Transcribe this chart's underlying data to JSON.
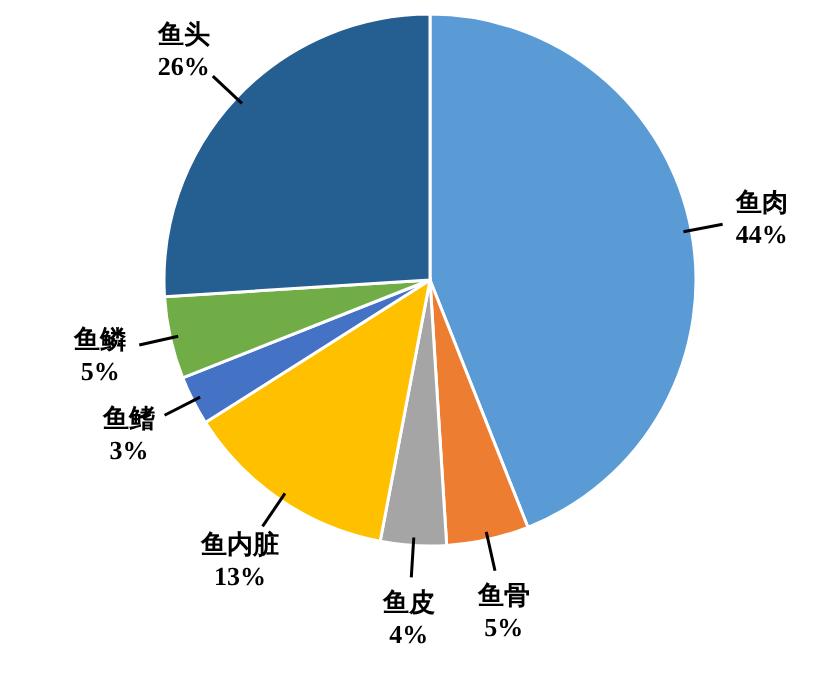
{
  "chart_data": {
    "type": "pie",
    "categories": [
      "鱼肉",
      "鱼骨",
      "鱼皮",
      "鱼内脏",
      "鱼鳍",
      "鱼鳞",
      "鱼头"
    ],
    "values": [
      44,
      5,
      4,
      13,
      3,
      5,
      26
    ],
    "value_labels": [
      "44%",
      "5%",
      "4%",
      "13%",
      "3%",
      "5%",
      "26%"
    ],
    "colors": [
      "#5b9bd5",
      "#ed7d31",
      "#a5a5a5",
      "#ffc000",
      "#4472c4",
      "#70ad47",
      "#255e91"
    ]
  }
}
